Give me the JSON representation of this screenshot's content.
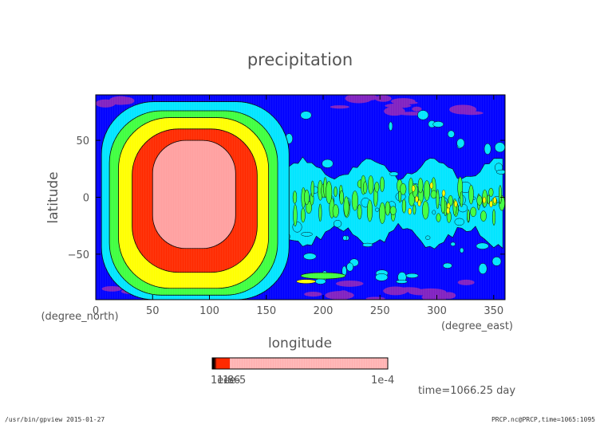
{
  "chart_data": {
    "type": "heatmap",
    "title": "precipitation",
    "xlabel": "longitude",
    "ylabel": "latitude",
    "x_unit": "(degree_east)",
    "y_unit": "(degree_north)",
    "xlim": [
      0,
      360
    ],
    "ylim": [
      -90,
      90
    ],
    "x_ticks": [
      0,
      50,
      100,
      150,
      200,
      250,
      300,
      350
    ],
    "y_ticks": [
      50,
      0,
      -50
    ],
    "x_tick_labels": [
      "0",
      "50",
      "100",
      "150",
      "200",
      "250",
      "300",
      "350"
    ],
    "y_tick_labels": [
      "50",
      "0",
      "−50"
    ],
    "grid": false,
    "time_label": "time=1066.25 day",
    "colorbar": {
      "min_label": "1e-8",
      "overlap_labels": [
        "1e-6",
        "1e-5"
      ],
      "max_label": "1e-4",
      "levels": [
        1e-08,
        1e-07,
        1e-06,
        1e-05,
        0.0001
      ],
      "colors": [
        "#000000",
        "#ff2a00",
        "#ff6a5a",
        "#ffa8a8",
        "#ffb0b0"
      ]
    },
    "regions": [
      {
        "name": "background",
        "level": "low",
        "color": "#0000ff"
      },
      {
        "name": "west-ring-1",
        "level": "cyan",
        "color": "#00e5ff"
      },
      {
        "name": "west-ring-2",
        "level": "green",
        "color": "#40ff40"
      },
      {
        "name": "west-ring-3",
        "level": "yellow",
        "color": "#ffff00"
      },
      {
        "name": "west-ring-4",
        "level": "red",
        "color": "#ff2a00"
      },
      {
        "name": "west-core",
        "level": "max",
        "color": "#ffa0a0",
        "center_lon": 85,
        "center_lat": 2
      },
      {
        "name": "east-band",
        "level": "cyan-green",
        "color": "#00e5ff",
        "lon_range": [
          165,
          345
        ]
      },
      {
        "name": "polar-purple",
        "level": "lowest",
        "color": "#8020c0"
      }
    ]
  },
  "footer": {
    "left": "/usr/bin/gpview  2015-01-27",
    "right": "PRCP.nc@PRCP,time=1065:1095"
  },
  "colors": {
    "text_gray": "#555555",
    "deep_blue": "#0000ff",
    "cyan": "#00e5ff",
    "green": "#40ff40",
    "yellow": "#ffff00",
    "red": "#ff2a00",
    "pink": "#ffa0a0",
    "purple": "#8020c0"
  }
}
